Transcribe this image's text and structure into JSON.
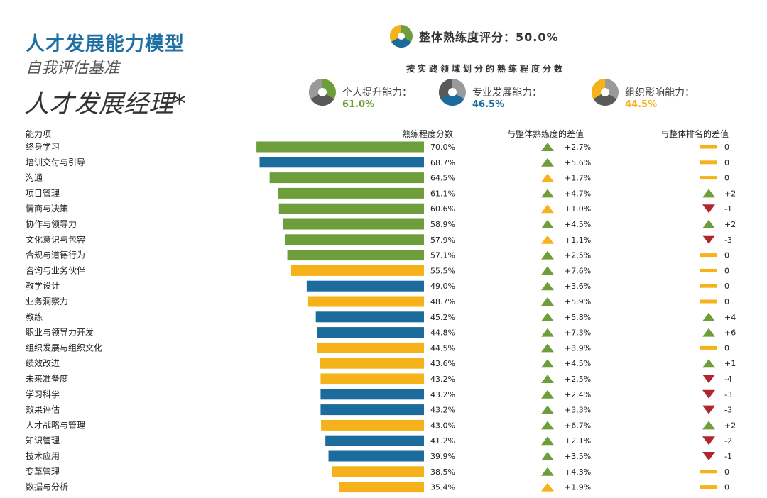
{
  "header": {
    "title": "人才发展能力模型",
    "subtitle": "自我评估基准",
    "role": "人才发展经理*",
    "overall_label": "整体熟练度评分：",
    "overall_score": "50.0%",
    "domain_heading": "按实践领域划分的熟练程度分数"
  },
  "colors": {
    "green": "#6e9e3b",
    "blue": "#1b6b9c",
    "yellow": "#f6b21a",
    "gray": "#595959",
    "red": "#b0262f",
    "title_blue": "#1f6fa3"
  },
  "domains": [
    {
      "name": "个人提升能力：",
      "score": "61.0%",
      "color": "#6e9e3b"
    },
    {
      "name": "专业发展能力：",
      "score": "46.5%",
      "color": "#1b6b9c"
    },
    {
      "name": "组织影响能力：",
      "score": "44.5%",
      "color": "#f6b21a"
    }
  ],
  "columns": {
    "item": "能力项",
    "score": "熟练程度分数",
    "diff_overall": "与整体熟练度的差值",
    "diff_rank": "与整体排名的差值"
  },
  "chart_data": {
    "type": "bar",
    "orientation": "horizontal",
    "title": "按实践领域划分的熟练程度分数",
    "xlim": [
      0,
      100
    ],
    "legend": [
      "个人提升能力",
      "专业发展能力",
      "组织影响能力"
    ],
    "rows": [
      {
        "label": "终身学习",
        "value": 70.0,
        "text": "70.0%",
        "domain": "green",
        "diff": "+2.7%",
        "diff_color": "green",
        "rank": "0",
        "rank_type": "flat"
      },
      {
        "label": "培训交付与引导",
        "value": 68.7,
        "text": "68.7%",
        "domain": "blue",
        "diff": "+5.6%",
        "diff_color": "green",
        "rank": "0",
        "rank_type": "flat"
      },
      {
        "label": "沟通",
        "value": 64.5,
        "text": "64.5%",
        "domain": "green",
        "diff": "+1.7%",
        "diff_color": "yellow",
        "rank": "0",
        "rank_type": "flat"
      },
      {
        "label": "项目管理",
        "value": 61.1,
        "text": "61.1%",
        "domain": "green",
        "diff": "+4.7%",
        "diff_color": "green",
        "rank": "+2",
        "rank_type": "up"
      },
      {
        "label": "情商与决策",
        "value": 60.6,
        "text": "60.6%",
        "domain": "green",
        "diff": "+1.0%",
        "diff_color": "yellow",
        "rank": "-1",
        "rank_type": "down"
      },
      {
        "label": "协作与领导力",
        "value": 58.9,
        "text": "58.9%",
        "domain": "green",
        "diff": "+4.5%",
        "diff_color": "green",
        "rank": "+2",
        "rank_type": "up"
      },
      {
        "label": "文化意识与包容",
        "value": 57.9,
        "text": "57.9%",
        "domain": "green",
        "diff": "+1.1%",
        "diff_color": "yellow",
        "rank": "-3",
        "rank_type": "down"
      },
      {
        "label": "合规与道德行为",
        "value": 57.1,
        "text": "57.1%",
        "domain": "green",
        "diff": "+2.5%",
        "diff_color": "green",
        "rank": "0",
        "rank_type": "flat"
      },
      {
        "label": "咨询与业务伙伴",
        "value": 55.5,
        "text": "55.5%",
        "domain": "yellow",
        "diff": "+7.6%",
        "diff_color": "green",
        "rank": "0",
        "rank_type": "flat"
      },
      {
        "label": "教学设计",
        "value": 49.0,
        "text": "49.0%",
        "domain": "blue",
        "diff": "+3.6%",
        "diff_color": "green",
        "rank": "0",
        "rank_type": "flat"
      },
      {
        "label": "业务洞察力",
        "value": 48.7,
        "text": "48.7%",
        "domain": "yellow",
        "diff": "+5.9%",
        "diff_color": "green",
        "rank": "0",
        "rank_type": "flat"
      },
      {
        "label": "教练",
        "value": 45.2,
        "text": "45.2%",
        "domain": "blue",
        "diff": "+5.8%",
        "diff_color": "green",
        "rank": "+4",
        "rank_type": "up"
      },
      {
        "label": "职业与领导力开发",
        "value": 44.8,
        "text": "44.8%",
        "domain": "blue",
        "diff": "+7.3%",
        "diff_color": "green",
        "rank": "+6",
        "rank_type": "up"
      },
      {
        "label": "组织发展与组织文化",
        "value": 44.5,
        "text": "44.5%",
        "domain": "yellow",
        "diff": "+3.9%",
        "diff_color": "green",
        "rank": "0",
        "rank_type": "flat"
      },
      {
        "label": "绩效改进",
        "value": 43.6,
        "text": "43.6%",
        "domain": "yellow",
        "diff": "+4.5%",
        "diff_color": "green",
        "rank": "+1",
        "rank_type": "up"
      },
      {
        "label": "未来准备度",
        "value": 43.2,
        "text": "43.2%",
        "domain": "yellow",
        "diff": "+2.5%",
        "diff_color": "green",
        "rank": "-4",
        "rank_type": "down"
      },
      {
        "label": "学习科学",
        "value": 43.2,
        "text": "43.2%",
        "domain": "blue",
        "diff": "+2.4%",
        "diff_color": "green",
        "rank": "-3",
        "rank_type": "down"
      },
      {
        "label": "效果评估",
        "value": 43.2,
        "text": "43.2%",
        "domain": "blue",
        "diff": "+3.3%",
        "diff_color": "green",
        "rank": "-3",
        "rank_type": "down"
      },
      {
        "label": "人才战略与管理",
        "value": 43.0,
        "text": "43.0%",
        "domain": "yellow",
        "diff": "+6.7%",
        "diff_color": "green",
        "rank": "+2",
        "rank_type": "up"
      },
      {
        "label": "知识管理",
        "value": 41.2,
        "text": "41.2%",
        "domain": "blue",
        "diff": "+2.1%",
        "diff_color": "green",
        "rank": "-2",
        "rank_type": "down"
      },
      {
        "label": "技术应用",
        "value": 39.9,
        "text": "39.9%",
        "domain": "blue",
        "diff": "+3.5%",
        "diff_color": "green",
        "rank": "-1",
        "rank_type": "down"
      },
      {
        "label": "变革管理",
        "value": 38.5,
        "text": "38.5%",
        "domain": "yellow",
        "diff": "+4.3%",
        "diff_color": "green",
        "rank": "0",
        "rank_type": "flat"
      },
      {
        "label": "数据与分析",
        "value": 35.4,
        "text": "35.4%",
        "domain": "yellow",
        "diff": "+1.9%",
        "diff_color": "yellow",
        "rank": "0",
        "rank_type": "flat"
      }
    ]
  }
}
